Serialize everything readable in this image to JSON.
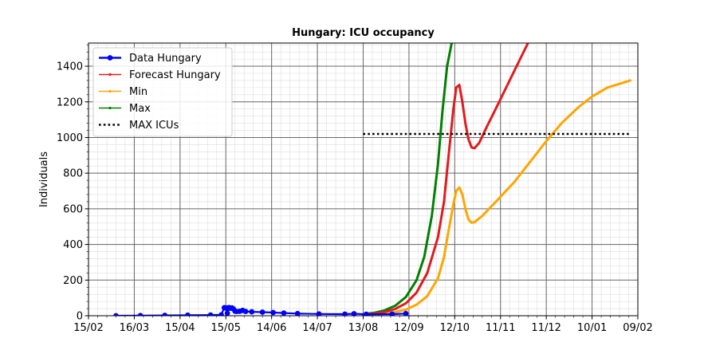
{
  "chart_data": {
    "type": "line",
    "title": "Hungary: ICU occupancy",
    "xlabel": "",
    "ylabel": "Individuals",
    "x_axis": {
      "type": "date",
      "range": [
        "2020-02-15",
        "2021-02-09"
      ],
      "ticks": [
        {
          "date": "2020-02-15",
          "label": "15/02"
        },
        {
          "date": "2020-03-16",
          "label": "16/03"
        },
        {
          "date": "2020-04-15",
          "label": "15/04"
        },
        {
          "date": "2020-05-15",
          "label": "15/05"
        },
        {
          "date": "2020-06-14",
          "label": "14/06"
        },
        {
          "date": "2020-07-14",
          "label": "14/07"
        },
        {
          "date": "2020-08-13",
          "label": "13/08"
        },
        {
          "date": "2020-09-12",
          "label": "12/09"
        },
        {
          "date": "2020-10-12",
          "label": "12/10"
        },
        {
          "date": "2020-11-11",
          "label": "11/11"
        },
        {
          "date": "2020-12-11",
          "label": "11/12"
        },
        {
          "date": "2021-01-10",
          "label": "10/01"
        },
        {
          "date": "2021-02-09",
          "label": "09/02"
        }
      ]
    },
    "ylim": [
      0,
      1530
    ],
    "y_ticks": [
      0,
      200,
      400,
      600,
      800,
      1000,
      1200,
      1400
    ],
    "grid": true,
    "legend_position": "top-left",
    "series": [
      {
        "name": "Data Hungary",
        "color": "#0000ff",
        "marker": "circle",
        "points": [
          [
            "2020-03-04",
            0
          ],
          [
            "2020-03-20",
            1
          ],
          [
            "2020-04-05",
            2
          ],
          [
            "2020-04-20",
            3
          ],
          [
            "2020-05-05",
            4
          ],
          [
            "2020-05-12",
            5
          ],
          [
            "2020-05-14",
            45
          ],
          [
            "2020-05-15",
            44
          ],
          [
            "2020-05-16",
            14
          ],
          [
            "2020-05-17",
            46
          ],
          [
            "2020-05-18",
            42
          ],
          [
            "2020-05-19",
            44
          ],
          [
            "2020-05-20",
            38
          ],
          [
            "2020-05-21",
            26
          ],
          [
            "2020-05-22",
            24
          ],
          [
            "2020-05-24",
            25
          ],
          [
            "2020-05-26",
            30
          ],
          [
            "2020-05-28",
            24
          ],
          [
            "2020-06-01",
            22
          ],
          [
            "2020-06-08",
            20
          ],
          [
            "2020-06-15",
            18
          ],
          [
            "2020-06-22",
            15
          ],
          [
            "2020-07-01",
            12
          ],
          [
            "2020-07-15",
            10
          ],
          [
            "2020-08-01",
            9
          ],
          [
            "2020-08-07",
            11
          ],
          [
            "2020-08-15",
            8
          ],
          [
            "2020-09-01",
            9
          ],
          [
            "2020-09-10",
            12
          ]
        ]
      },
      {
        "name": "Forecast Hungary",
        "color": "#e31a1c",
        "marker": "dot",
        "points": [
          [
            "2020-08-13",
            7
          ],
          [
            "2020-08-20",
            11
          ],
          [
            "2020-08-27",
            20
          ],
          [
            "2020-09-03",
            38
          ],
          [
            "2020-09-10",
            70
          ],
          [
            "2020-09-17",
            130
          ],
          [
            "2020-09-24",
            240
          ],
          [
            "2020-10-01",
            440
          ],
          [
            "2020-10-05",
            640
          ],
          [
            "2020-10-08",
            900
          ],
          [
            "2020-10-11",
            1150
          ],
          [
            "2020-10-13",
            1280
          ],
          [
            "2020-10-15",
            1295
          ],
          [
            "2020-10-17",
            1200
          ],
          [
            "2020-10-19",
            1080
          ],
          [
            "2020-10-21",
            990
          ],
          [
            "2020-10-23",
            945
          ],
          [
            "2020-10-25",
            940
          ],
          [
            "2020-10-28",
            970
          ],
          [
            "2020-11-02",
            1060
          ],
          [
            "2020-11-09",
            1180
          ],
          [
            "2020-11-17",
            1320
          ],
          [
            "2020-11-25",
            1460
          ],
          [
            "2020-11-29",
            1530
          ]
        ]
      },
      {
        "name": "Min",
        "color": "#ffa500",
        "marker": "dot",
        "points": [
          [
            "2020-08-13",
            3
          ],
          [
            "2020-08-20",
            6
          ],
          [
            "2020-08-27",
            11
          ],
          [
            "2020-09-03",
            20
          ],
          [
            "2020-09-10",
            35
          ],
          [
            "2020-09-17",
            62
          ],
          [
            "2020-09-24",
            110
          ],
          [
            "2020-10-01",
            210
          ],
          [
            "2020-10-05",
            330
          ],
          [
            "2020-10-08",
            480
          ],
          [
            "2020-10-11",
            620
          ],
          [
            "2020-10-13",
            700
          ],
          [
            "2020-10-15",
            720
          ],
          [
            "2020-10-17",
            680
          ],
          [
            "2020-10-19",
            600
          ],
          [
            "2020-10-21",
            540
          ],
          [
            "2020-10-23",
            522
          ],
          [
            "2020-10-25",
            525
          ],
          [
            "2020-10-30",
            560
          ],
          [
            "2020-11-08",
            640
          ],
          [
            "2020-11-20",
            750
          ],
          [
            "2020-12-01",
            870
          ],
          [
            "2020-12-11",
            980
          ],
          [
            "2020-12-21",
            1080
          ],
          [
            "2021-01-01",
            1170
          ],
          [
            "2021-01-10",
            1230
          ],
          [
            "2021-01-20",
            1280
          ],
          [
            "2021-02-04",
            1320
          ]
        ]
      },
      {
        "name": "Max",
        "color": "#008000",
        "marker": "dot",
        "points": [
          [
            "2020-08-13",
            9
          ],
          [
            "2020-08-20",
            16
          ],
          [
            "2020-08-27",
            30
          ],
          [
            "2020-09-03",
            56
          ],
          [
            "2020-09-10",
            105
          ],
          [
            "2020-09-17",
            200
          ],
          [
            "2020-09-22",
            330
          ],
          [
            "2020-09-27",
            560
          ],
          [
            "2020-10-01",
            850
          ],
          [
            "2020-10-04",
            1150
          ],
          [
            "2020-10-07",
            1400
          ],
          [
            "2020-10-10",
            1530
          ]
        ]
      },
      {
        "name": "MAX ICUs",
        "color": "#000000",
        "style": "dotted",
        "points": [
          [
            "2020-08-13",
            1020
          ],
          [
            "2021-02-04",
            1020
          ]
        ]
      }
    ]
  }
}
